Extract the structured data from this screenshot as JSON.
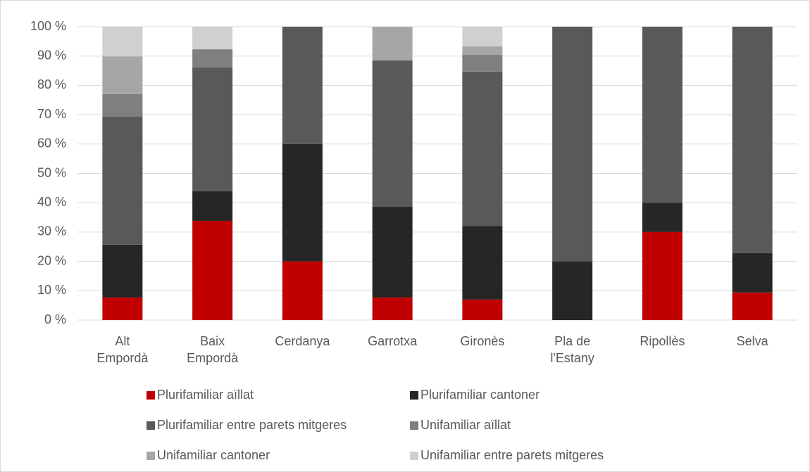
{
  "chart_data": {
    "type": "stacked_bar",
    "categories": [
      "Alt\nEmpordà",
      "Baix\nEmpordà",
      "Cerdanya",
      "Garrotxa",
      "Gironès",
      "Pla de\nl'Estany",
      "Ripollès",
      "Selva"
    ],
    "series": [
      {
        "name": "Plurifamiliar aïllat",
        "color": "#c00000",
        "values": [
          7.7,
          33.8,
          20,
          7.7,
          7.0,
          0,
          30,
          9.4
        ]
      },
      {
        "name": "Plurifamiliar cantoner",
        "color": "#262626",
        "values": [
          18.0,
          10.1,
          40,
          30.9,
          25.1,
          20,
          10,
          13.4
        ]
      },
      {
        "name": "Plurifamiliar entre parets mitgeres",
        "color": "#595959",
        "values": [
          43.6,
          42.2,
          40,
          49.9,
          52.6,
          80,
          60,
          77.2
        ]
      },
      {
        "name": "Unifamiliar aïllat",
        "color": "#7f7f7f",
        "values": [
          7.7,
          6.2,
          0,
          0,
          5.7,
          0,
          0,
          0
        ]
      },
      {
        "name": "Unifamiliar cantoner",
        "color": "#a6a6a6",
        "values": [
          12.9,
          0,
          0,
          11.5,
          2.9,
          0,
          0,
          0
        ]
      },
      {
        "name": "Unifamiliar entre parets mitgeres",
        "color": "#d0d0d0",
        "values": [
          10.1,
          7.7,
          0,
          0,
          6.7,
          0,
          0,
          0
        ]
      }
    ],
    "ylim": [
      0,
      100
    ],
    "yticks": [
      {
        "value": 0,
        "label": "0 %"
      },
      {
        "value": 10,
        "label": "10 %"
      },
      {
        "value": 20,
        "label": "20 %"
      },
      {
        "value": 30,
        "label": "30 %"
      },
      {
        "value": 40,
        "label": "40 %"
      },
      {
        "value": 50,
        "label": "50 %"
      },
      {
        "value": 60,
        "label": "60 %"
      },
      {
        "value": 70,
        "label": "70 %"
      },
      {
        "value": 80,
        "label": "80 %"
      },
      {
        "value": 90,
        "label": "90 %"
      },
      {
        "value": 100,
        "label": "100 %"
      }
    ],
    "grid": true
  }
}
